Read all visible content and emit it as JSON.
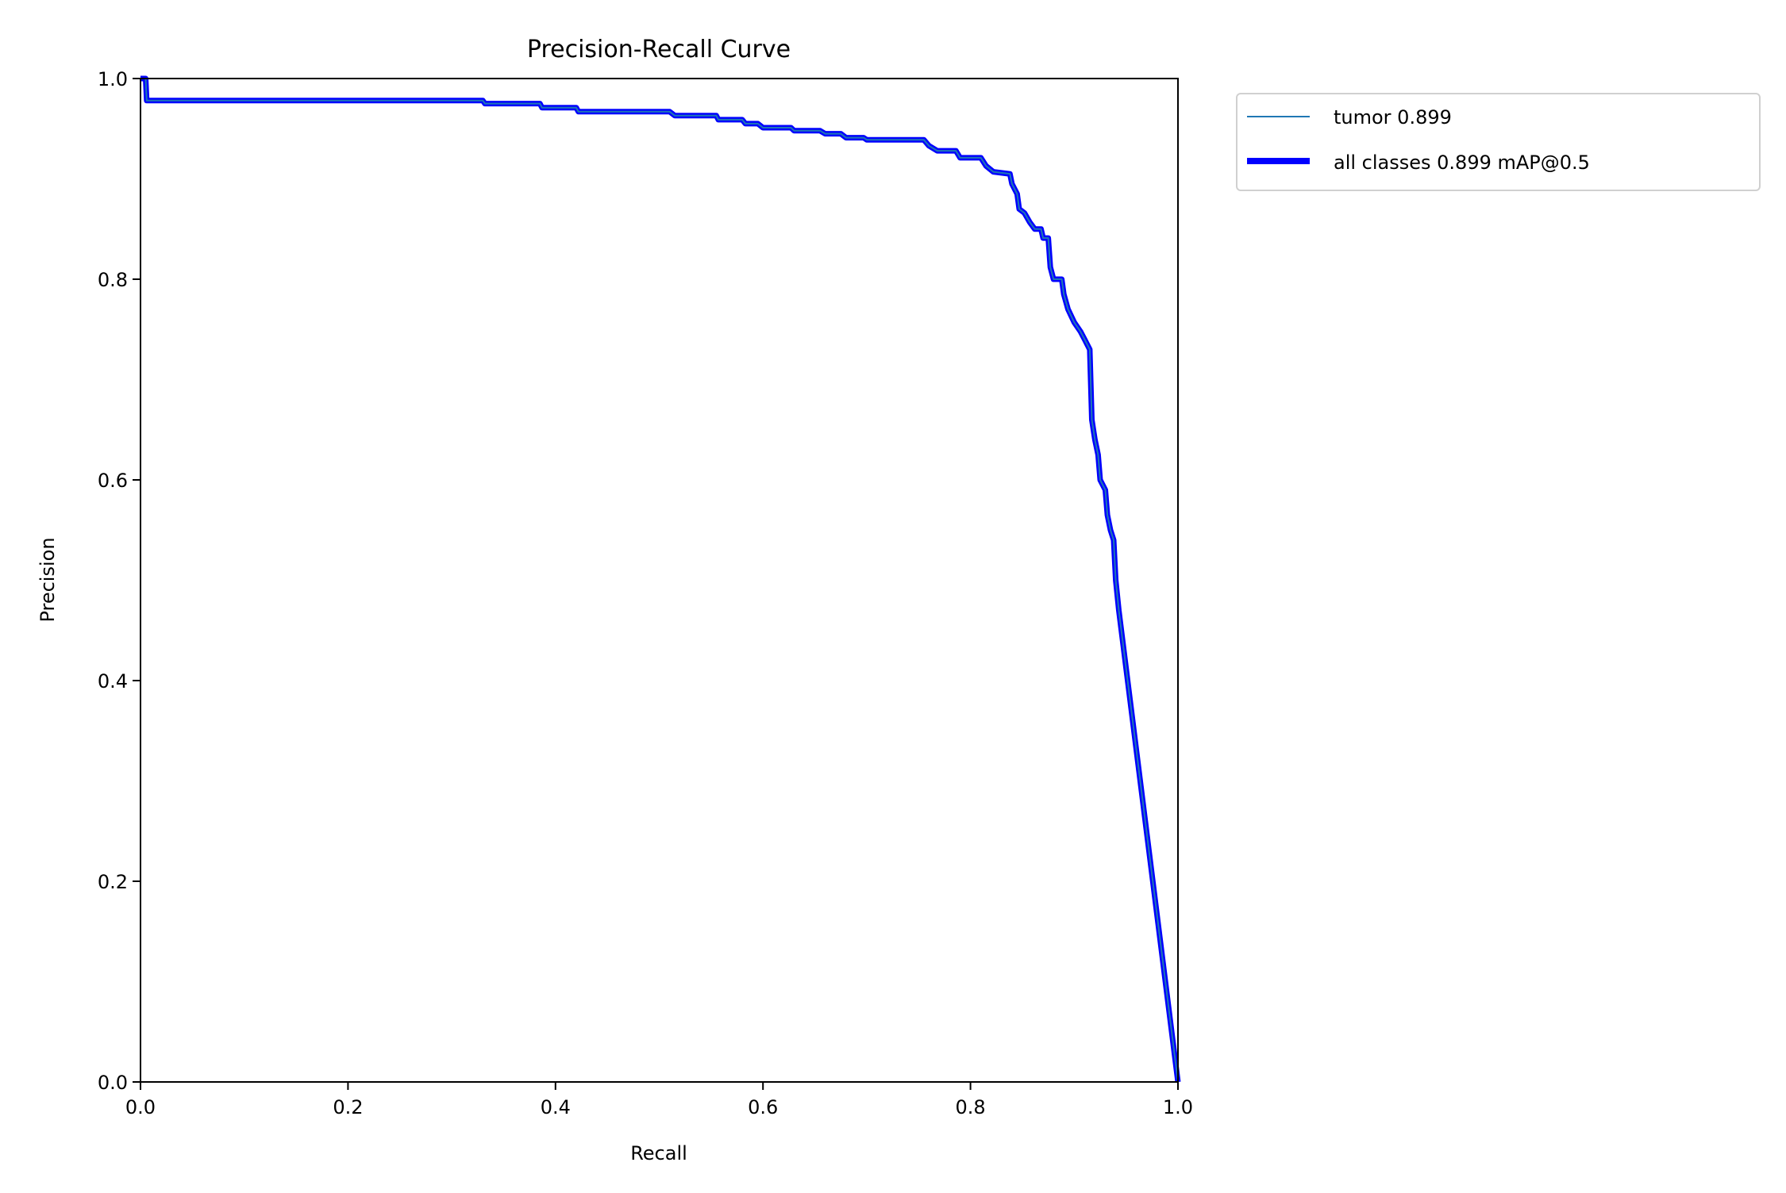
{
  "chart_data": {
    "type": "line",
    "title": "Precision-Recall Curve",
    "xlabel": "Recall",
    "ylabel": "Precision",
    "xlim": [
      0,
      1
    ],
    "ylim": [
      0,
      1
    ],
    "grid": false,
    "legend_placement": "outside-top-right",
    "xticks": [
      "0.0",
      "0.2",
      "0.4",
      "0.6",
      "0.8",
      "1.0"
    ],
    "yticks": [
      "0.0",
      "0.2",
      "0.4",
      "0.6",
      "0.8",
      "1.0"
    ],
    "series": [
      {
        "name": "tumor 0.899",
        "color": "#1f77b4",
        "x": [
          0,
          0.005,
          0.006,
          0.33,
          0.332,
          0.385,
          0.387,
          0.42,
          0.422,
          0.51,
          0.515,
          0.555,
          0.557,
          0.58,
          0.583,
          0.595,
          0.6,
          0.627,
          0.63,
          0.655,
          0.66,
          0.675,
          0.68,
          0.697,
          0.7,
          0.755,
          0.76,
          0.768,
          0.786,
          0.79,
          0.81,
          0.815,
          0.822,
          0.838,
          0.84,
          0.845,
          0.847,
          0.852,
          0.857,
          0.862,
          0.868,
          0.87,
          0.875,
          0.877,
          0.88,
          0.888,
          0.89,
          0.894,
          0.9,
          0.906,
          0.91,
          0.915,
          0.917,
          0.92,
          0.923,
          0.925,
          0.93,
          0.932,
          0.935,
          0.938,
          0.94,
          0.943,
          1.0
        ],
        "y": [
          1.0,
          1.0,
          0.978,
          0.978,
          0.975,
          0.975,
          0.971,
          0.971,
          0.967,
          0.967,
          0.963,
          0.963,
          0.959,
          0.959,
          0.955,
          0.955,
          0.951,
          0.951,
          0.948,
          0.948,
          0.945,
          0.945,
          0.941,
          0.941,
          0.939,
          0.939,
          0.933,
          0.928,
          0.928,
          0.921,
          0.921,
          0.913,
          0.907,
          0.905,
          0.895,
          0.885,
          0.87,
          0.866,
          0.857,
          0.85,
          0.85,
          0.841,
          0.841,
          0.812,
          0.8,
          0.8,
          0.785,
          0.77,
          0.757,
          0.748,
          0.74,
          0.73,
          0.66,
          0.64,
          0.625,
          0.6,
          0.59,
          0.565,
          0.55,
          0.54,
          0.5,
          0.47,
          0.0
        ]
      },
      {
        "name": "all classes 0.899 mAP@0.5",
        "color": "#0000ff",
        "x": [
          0,
          0.005,
          0.006,
          0.33,
          0.332,
          0.385,
          0.387,
          0.42,
          0.422,
          0.51,
          0.515,
          0.555,
          0.557,
          0.58,
          0.583,
          0.595,
          0.6,
          0.627,
          0.63,
          0.655,
          0.66,
          0.675,
          0.68,
          0.697,
          0.7,
          0.755,
          0.76,
          0.768,
          0.786,
          0.79,
          0.81,
          0.815,
          0.822,
          0.838,
          0.84,
          0.845,
          0.847,
          0.852,
          0.857,
          0.862,
          0.868,
          0.87,
          0.875,
          0.877,
          0.88,
          0.888,
          0.89,
          0.894,
          0.9,
          0.906,
          0.91,
          0.915,
          0.917,
          0.92,
          0.923,
          0.925,
          0.93,
          0.932,
          0.935,
          0.938,
          0.94,
          0.943,
          1.0
        ],
        "y": [
          1.0,
          1.0,
          0.978,
          0.978,
          0.975,
          0.975,
          0.971,
          0.971,
          0.967,
          0.967,
          0.963,
          0.963,
          0.959,
          0.959,
          0.955,
          0.955,
          0.951,
          0.951,
          0.948,
          0.948,
          0.945,
          0.945,
          0.941,
          0.941,
          0.939,
          0.939,
          0.933,
          0.928,
          0.928,
          0.921,
          0.921,
          0.913,
          0.907,
          0.905,
          0.895,
          0.885,
          0.87,
          0.866,
          0.857,
          0.85,
          0.85,
          0.841,
          0.841,
          0.812,
          0.8,
          0.8,
          0.785,
          0.77,
          0.757,
          0.748,
          0.74,
          0.73,
          0.66,
          0.64,
          0.625,
          0.6,
          0.59,
          0.565,
          0.55,
          0.54,
          0.5,
          0.47,
          0.0
        ]
      }
    ]
  }
}
